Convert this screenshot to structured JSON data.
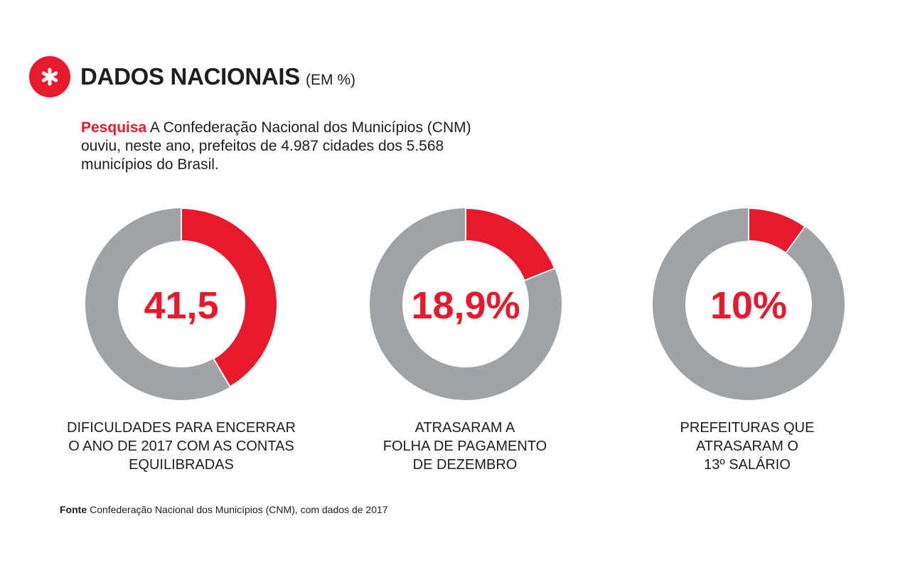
{
  "header": {
    "title": "DADOS NACIONAIS",
    "unit": "(EM %)",
    "icon": "asterisk-icon"
  },
  "intro": {
    "lead": "Pesquisa",
    "text": "A Confederação Nacional dos Municípios (CNM) ouviu, neste ano, prefeitos de 4.987 cidades dos 5.568 municípios do Brasil."
  },
  "colors": {
    "accent": "#e8192c",
    "track": "#9ea3a7",
    "text": "#1e1e1e"
  },
  "chart_data": [
    {
      "type": "pie",
      "value": 41.5,
      "center_label": "41,5",
      "caption": [
        "DIFICULDADES PARA ENCERRAR",
        "O ANO DE 2017 COM AS CONTAS",
        "EQUILIBRADAS"
      ]
    },
    {
      "type": "pie",
      "value": 18.9,
      "center_label": "18,9%",
      "caption": [
        "ATRASARAM A",
        "FOLHA DE PAGAMENTO",
        "DE DEZEMBRO"
      ]
    },
    {
      "type": "pie",
      "value": 10,
      "center_label": "10%",
      "caption": [
        "PREFEITURAS QUE",
        "ATRASARAM O",
        "13º SALÁRIO"
      ]
    }
  ],
  "source": {
    "label": "Fonte",
    "text": "Confederação Nacional dos Municípios (CNM), com dados de 2017"
  }
}
